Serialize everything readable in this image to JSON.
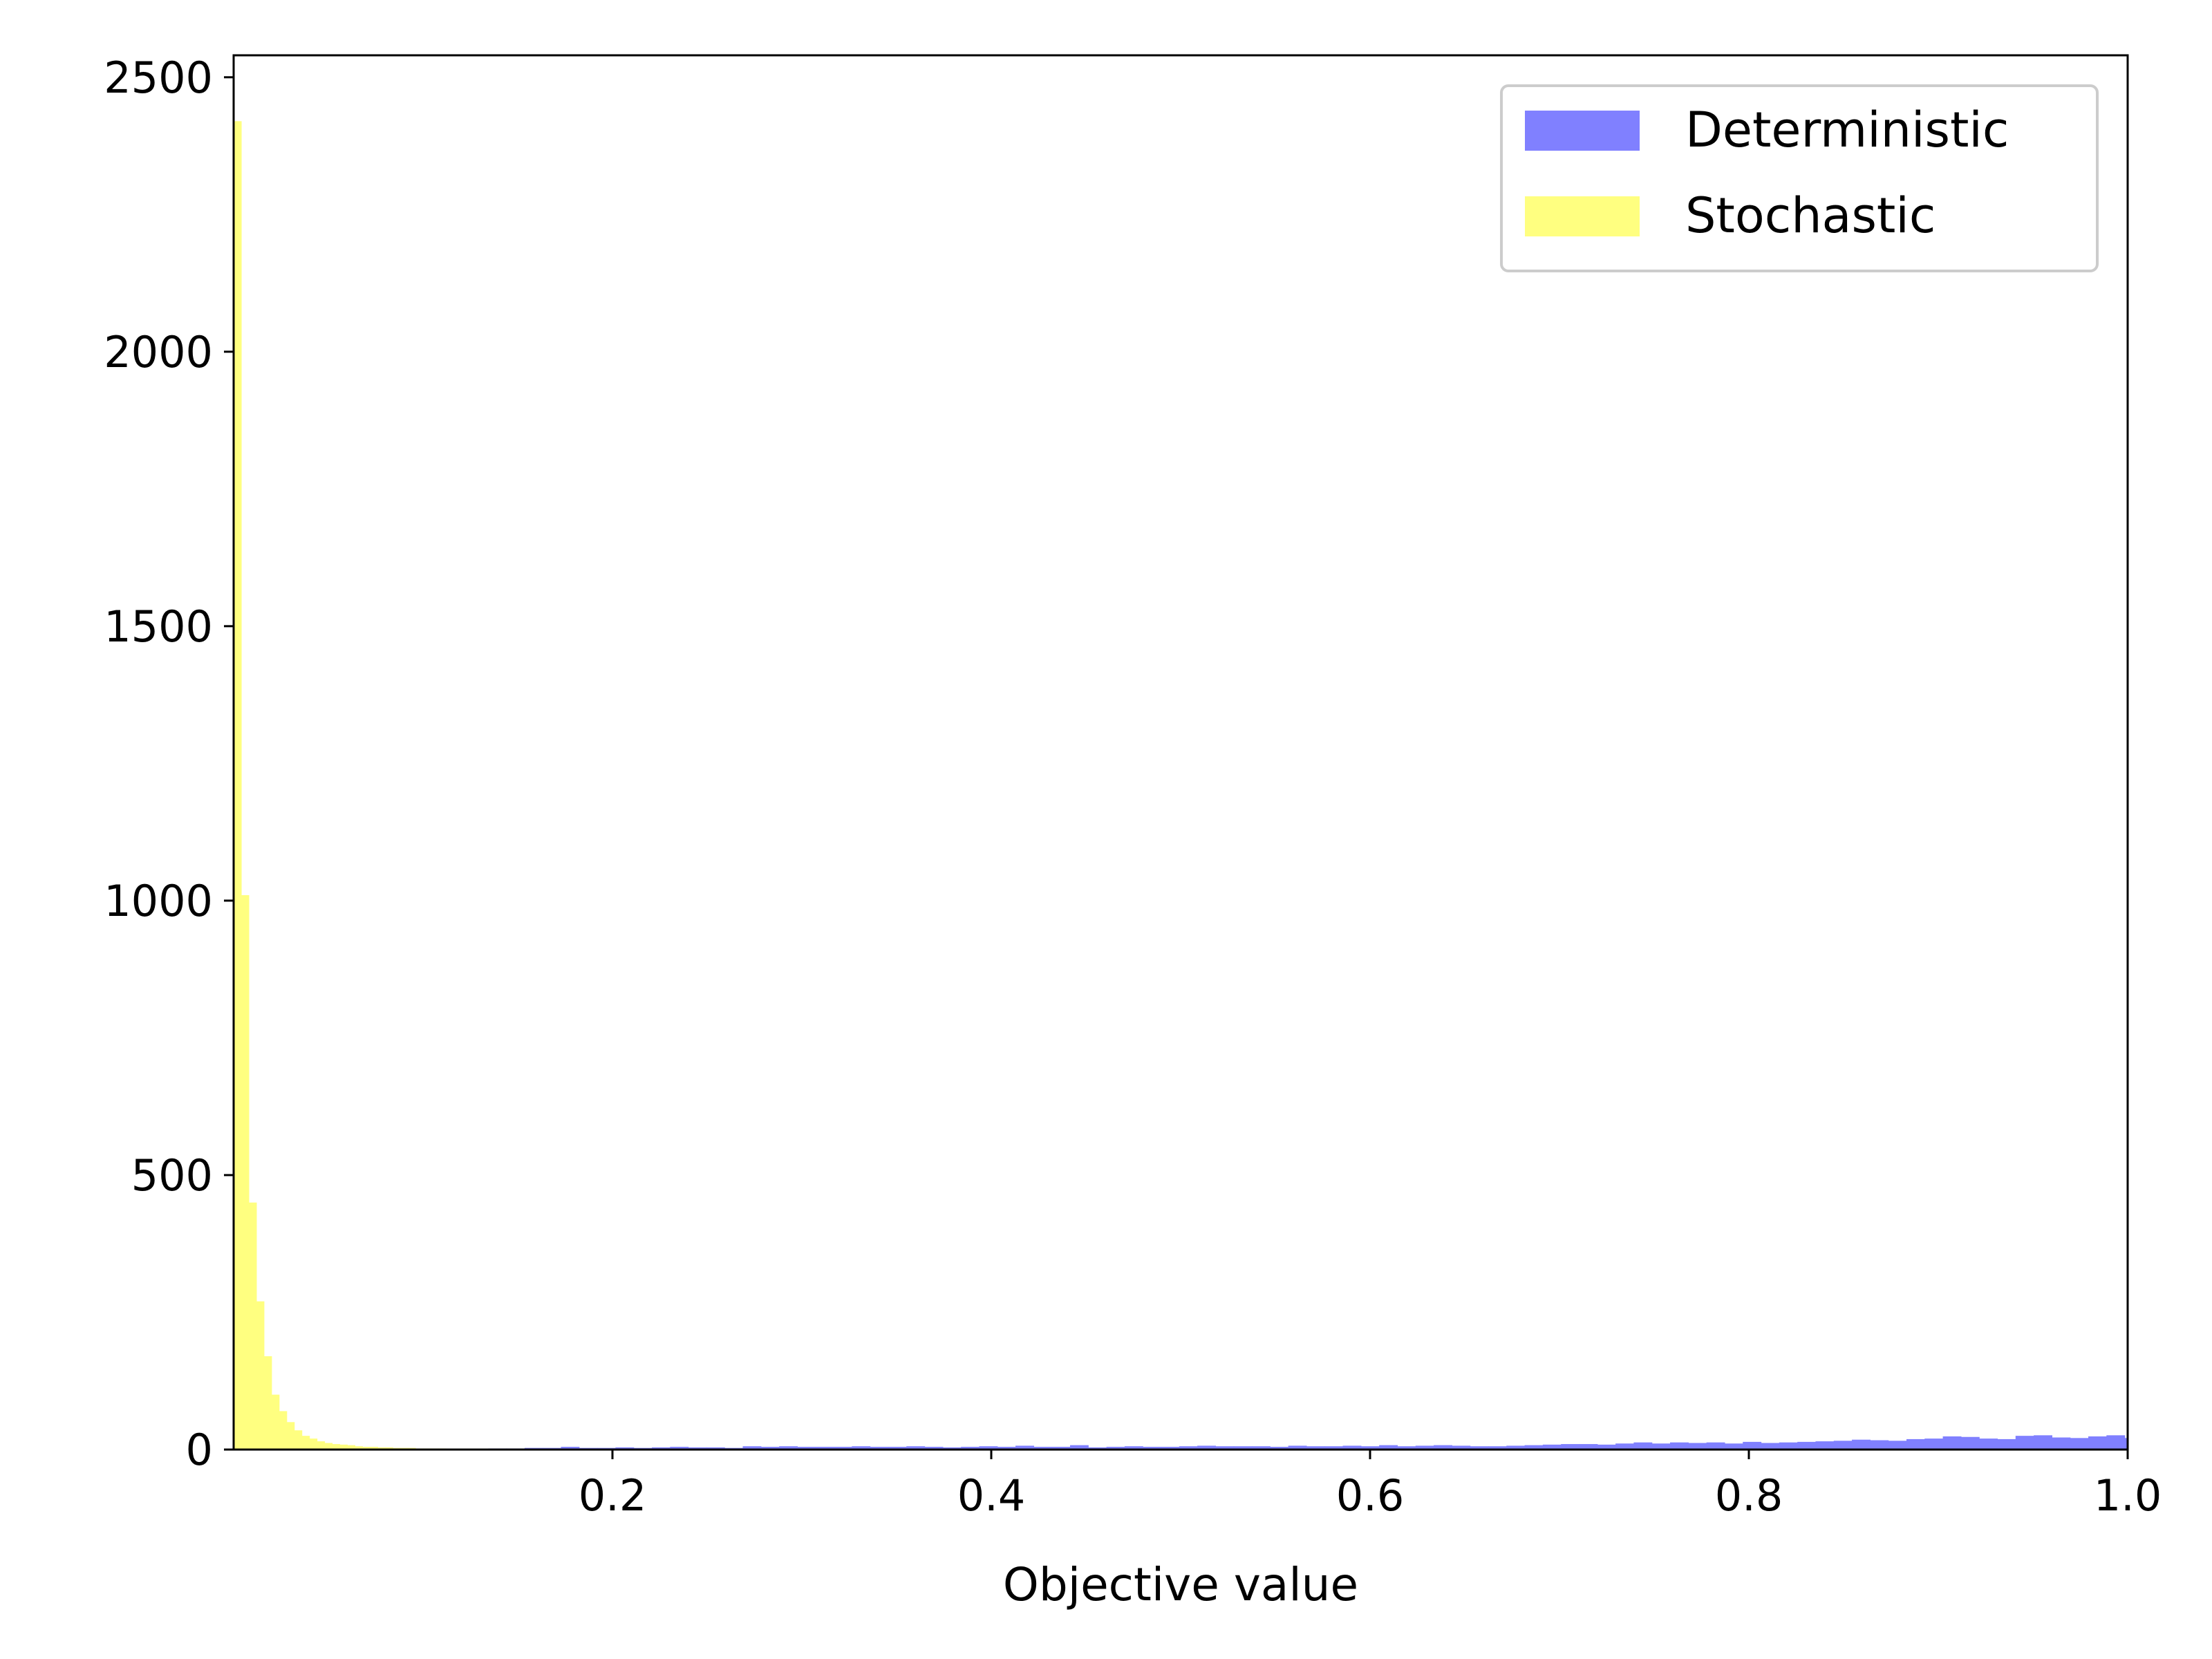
{
  "chart_data": {
    "type": "histogram",
    "title": "",
    "xlabel": "Objective value",
    "ylabel": "",
    "xlim": [
      0.0,
      1.0
    ],
    "ylim": [
      0,
      2540
    ],
    "x_ticks": [
      0.2,
      0.4,
      0.6,
      0.8,
      1.0
    ],
    "x_tick_labels": [
      "0.2",
      "0.4",
      "0.6",
      "0.8",
      "1.0"
    ],
    "y_ticks": [
      0,
      500,
      1000,
      1500,
      2000,
      2500
    ],
    "y_tick_labels": [
      "0",
      "500",
      "1000",
      "1500",
      "2000",
      "2500"
    ],
    "grid": false,
    "legend_position": "upper right",
    "series": [
      {
        "name": "Deterministic",
        "color": "#8080ff",
        "bin_width": 0.0096,
        "bin_start": 0.0,
        "values": [
          0,
          0,
          0,
          0,
          0,
          0,
          0,
          0,
          0,
          0,
          0,
          0,
          0,
          1,
          2,
          2,
          3,
          3,
          5,
          3,
          3,
          4,
          3,
          4,
          5,
          4,
          4,
          3,
          6,
          5,
          6,
          5,
          5,
          5,
          6,
          5,
          5,
          6,
          5,
          4,
          5,
          6,
          5,
          7,
          5,
          5,
          8,
          4,
          5,
          6,
          5,
          5,
          6,
          7,
          6,
          6,
          6,
          5,
          7,
          6,
          6,
          7,
          6,
          8,
          6,
          7,
          8,
          7,
          6,
          6,
          7,
          8,
          9,
          10,
          10,
          9,
          11,
          13,
          11,
          13,
          12,
          13,
          11,
          14,
          12,
          13,
          14,
          15,
          16,
          18,
          17,
          16,
          19,
          20,
          24,
          23,
          20,
          19,
          25,
          26,
          22,
          21,
          24,
          26,
          21,
          23,
          24,
          26,
          27,
          25,
          33,
          26,
          29,
          34,
          30,
          28,
          40,
          35,
          30,
          31,
          30,
          28,
          38,
          36,
          35,
          28,
          38,
          46,
          44,
          38,
          47,
          41,
          51,
          58,
          47,
          54,
          58,
          85,
          62,
          92,
          72,
          81,
          55
        ]
      },
      {
        "name": "Stochastic",
        "color": "#ffff80",
        "bin_width": 0.004,
        "bin_start": 0.0,
        "values": [
          2420,
          1010,
          450,
          270,
          170,
          100,
          70,
          50,
          35,
          25,
          20,
          15,
          12,
          10,
          9,
          8,
          6,
          5,
          5,
          4,
          4,
          3,
          3,
          3,
          2,
          2,
          2,
          2,
          1,
          1,
          1,
          1,
          1,
          1,
          1,
          1,
          0,
          0,
          0,
          0
        ]
      }
    ]
  }
}
